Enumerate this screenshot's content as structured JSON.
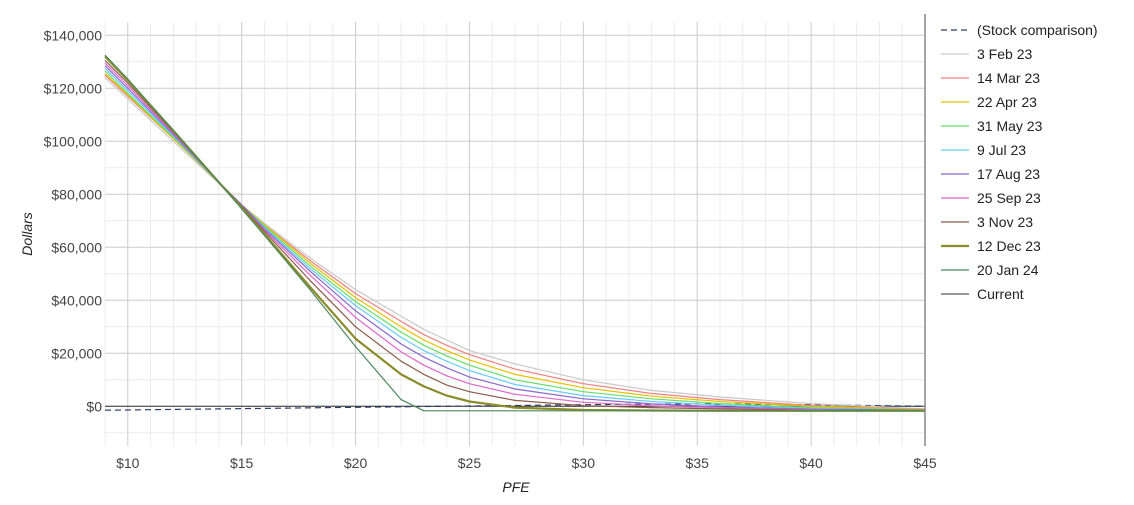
{
  "chart_data": {
    "type": "line",
    "xlabel": "PFE",
    "ylabel": "Dollars",
    "xlim": [
      9,
      45
    ],
    "ylim": [
      -15000,
      145000
    ],
    "x_ticks": [
      10,
      15,
      20,
      25,
      30,
      35,
      40,
      45
    ],
    "x_tick_labels": [
      "$10",
      "$15",
      "$20",
      "$25",
      "$30",
      "$35",
      "$40",
      "$45"
    ],
    "y_ticks": [
      0,
      20000,
      40000,
      60000,
      80000,
      100000,
      120000,
      140000
    ],
    "y_tick_labels": [
      "$0",
      "$20,000",
      "$40,000",
      "$60,000",
      "$80,000",
      "$100,000",
      "$120,000",
      "$140,000"
    ],
    "grid": true,
    "legend_position": "right",
    "x": [
      9,
      10,
      12,
      14,
      15,
      16,
      18,
      20,
      22,
      23,
      24,
      25,
      27,
      30,
      33,
      36,
      40,
      45
    ],
    "series": [
      {
        "name": "(Stock comparison)",
        "color": "#2c3e66",
        "dashed": true,
        "width": 1.2,
        "values": [
          -1500,
          -1400,
          -1200,
          -1000,
          -900,
          -800,
          -600,
          -400,
          -200,
          -100,
          0,
          100,
          300,
          600,
          800,
          900,
          600,
          0
        ]
      },
      {
        "name": "3 Feb 23",
        "color": "#c9c9c9",
        "width": 1.2,
        "values": [
          124000,
          116000,
          100000,
          84000,
          76000,
          69000,
          56000,
          44000,
          34000,
          29000,
          25000,
          21000,
          16000,
          10000,
          6000,
          3500,
          1000,
          -1000
        ]
      },
      {
        "name": "14 Mar 23",
        "color": "#f08080",
        "width": 1.2,
        "values": [
          125000,
          117000,
          101000,
          84500,
          76000,
          68500,
          55000,
          42500,
          32000,
          27000,
          23000,
          19500,
          14000,
          8500,
          4800,
          2500,
          300,
          -1200
        ]
      },
      {
        "name": "22 Apr 23",
        "color": "#e6c000",
        "width": 1.2,
        "values": [
          125500,
          117500,
          101000,
          84500,
          76000,
          68500,
          54000,
          41000,
          30000,
          25000,
          21000,
          17500,
          12000,
          7000,
          3800,
          1800,
          0,
          -1300
        ]
      },
      {
        "name": "31 May 23",
        "color": "#66dd66",
        "width": 1.2,
        "values": [
          126500,
          118000,
          101500,
          84500,
          76000,
          68000,
          53000,
          39500,
          28000,
          23000,
          19000,
          15500,
          10000,
          5500,
          2800,
          1000,
          -500,
          -1400
        ]
      },
      {
        "name": "9 Jul 23",
        "color": "#66ccff",
        "width": 1.2,
        "values": [
          127500,
          119000,
          102000,
          84500,
          76000,
          67500,
          52000,
          38000,
          26000,
          21000,
          17000,
          13500,
          8200,
          4000,
          1800,
          400,
          -800,
          -1500
        ]
      },
      {
        "name": "17 Aug 23",
        "color": "#8866cc",
        "width": 1.2,
        "values": [
          128500,
          120000,
          102500,
          84500,
          76000,
          67000,
          51000,
          36000,
          23500,
          18500,
          14500,
          11000,
          6500,
          2800,
          900,
          -200,
          -1100,
          -1500
        ]
      },
      {
        "name": "25 Sep 23",
        "color": "#e066cc",
        "width": 1.2,
        "values": [
          129500,
          121000,
          103000,
          84500,
          75500,
          66500,
          49500,
          33500,
          20500,
          15500,
          11500,
          8500,
          4500,
          1500,
          200,
          -600,
          -1300,
          -1600
        ]
      },
      {
        "name": "3 Nov 23",
        "color": "#8b5a4a",
        "width": 1.2,
        "values": [
          130500,
          122000,
          103500,
          84500,
          75500,
          66000,
          47500,
          30000,
          17000,
          12000,
          8000,
          5500,
          2200,
          200,
          -500,
          -1000,
          -1500,
          -1600
        ]
      },
      {
        "name": "12 Dec 23",
        "color": "#8b8b2a",
        "width": 2.2,
        "values": [
          132000,
          123000,
          104000,
          84500,
          75000,
          65000,
          45000,
          25500,
          12000,
          7500,
          4000,
          1800,
          -500,
          -1400,
          -1600,
          -1700,
          -1700,
          -1700
        ]
      },
      {
        "name": "20 Jan 24",
        "color": "#4a8a5a",
        "width": 1.2,
        "values": [
          132500,
          123500,
          104000,
          84500,
          74500,
          64500,
          44000,
          22500,
          2500,
          -1700,
          -1700,
          -1700,
          -1700,
          -1700,
          -1700,
          -1700,
          -1700,
          -1700
        ]
      },
      {
        "name": "Current",
        "color": "#333333",
        "width": 1.0,
        "values": [
          0,
          0,
          0,
          0,
          0,
          0,
          0,
          0,
          0,
          0,
          0,
          0,
          0,
          0,
          0,
          0,
          0,
          0
        ]
      }
    ]
  }
}
